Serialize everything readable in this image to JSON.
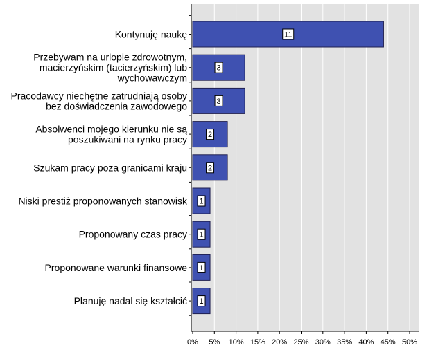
{
  "chart_data": {
    "type": "bar",
    "orientation": "horizontal",
    "title": "",
    "xlabel": "",
    "ylabel": "",
    "categories": [
      [
        "Kontynuję naukę"
      ],
      [
        "Przebywam na urlopie zdrowotnym,",
        "macierzyńskim (tacierzyńskim) lub",
        "wychowawczym"
      ],
      [
        "Pracodawcy niechętne zatrudniają osoby",
        "bez doświadczenia zawodowego"
      ],
      [
        "Absolwenci mojego kierunku nie są",
        "poszukiwani na rynku pracy"
      ],
      [
        "Szukam pracy poza granicami kraju"
      ],
      [
        "Niski prestiż proponowanych stanowisk"
      ],
      [
        "Proponowany czas pracy"
      ],
      [
        "Proponowane warunki finansowe"
      ],
      [
        "Planuję nadal się kształcić"
      ]
    ],
    "values_percent": [
      44,
      12,
      12,
      8,
      8,
      4,
      4,
      4,
      4
    ],
    "data_labels": [
      "11",
      "3",
      "3",
      "2",
      "2",
      "1",
      "1",
      "1",
      "1"
    ],
    "xlim": [
      0,
      52
    ],
    "xticks": [
      0,
      5,
      10,
      15,
      20,
      25,
      30,
      35,
      40,
      45,
      50
    ],
    "xtick_labels": [
      "0%",
      "5%",
      "10%",
      "15%",
      "20%",
      "25%",
      "30%",
      "35%",
      "40%",
      "45%",
      "50%"
    ],
    "grid": "vertical",
    "legend": "none",
    "colors": {
      "bar_fill": "#3f51b1",
      "bar_stroke": "#1f1f50",
      "plot_bg": "#e2e2e2",
      "grid": "#ffffff",
      "label_box": "#ffffff"
    }
  }
}
